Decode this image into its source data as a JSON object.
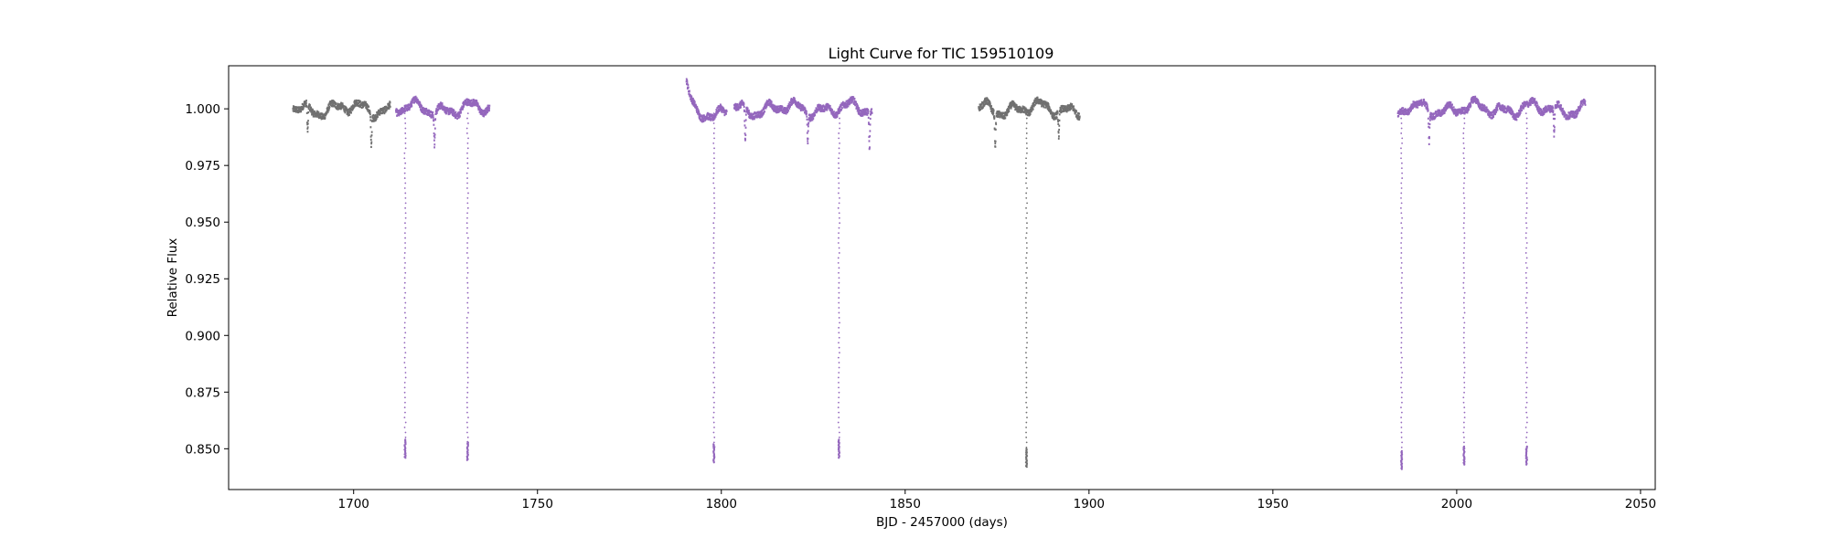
{
  "chart_data": {
    "type": "scatter",
    "title": "Light Curve for TIC 159510109",
    "xlabel": "BJD - 2457000 (days)",
    "ylabel": "Relative Flux",
    "xlim": [
      1666,
      2054
    ],
    "ylim": [
      0.832,
      1.019
    ],
    "xticks": [
      1700,
      1750,
      1800,
      1850,
      1900,
      1950,
      2000,
      2050
    ],
    "xtick_labels": [
      "1700",
      "1750",
      "1800",
      "1850",
      "1900",
      "1950",
      "2000",
      "2050"
    ],
    "yticks": [
      0.85,
      0.875,
      0.9,
      0.925,
      0.95,
      0.975,
      1.0
    ],
    "ytick_labels": [
      "0.850",
      "0.875",
      "0.900",
      "0.925",
      "0.950",
      "0.975",
      "1.000"
    ],
    "grid": false,
    "legend": "none",
    "colors": {
      "gray": "#707070",
      "purple": "#9467bd"
    },
    "segments": [
      {
        "color": "gray",
        "x_start": 1683.5,
        "x_end": 1710.0,
        "dips": [
          {
            "x": 1687.5,
            "depth": 0.012
          },
          {
            "x": 1704.8,
            "depth": 0.013
          }
        ]
      },
      {
        "color": "purple",
        "x_start": 1711.5,
        "x_end": 1737.0,
        "dips": [
          {
            "x": 1722.0,
            "depth": 0.014
          }
        ]
      },
      {
        "color": "purple",
        "x_start": 1790.5,
        "x_end": 1801.5,
        "dips": []
      },
      {
        "color": "purple",
        "x_start": 1803.5,
        "x_end": 1841.0,
        "dips": [
          {
            "x": 1806.5,
            "depth": 0.016
          },
          {
            "x": 1823.5,
            "depth": 0.012
          },
          {
            "x": 1840.3,
            "depth": 0.016
          }
        ]
      },
      {
        "color": "gray",
        "x_start": 1870.0,
        "x_end": 1897.5,
        "dips": [
          {
            "x": 1874.5,
            "depth": 0.014
          },
          {
            "x": 1891.8,
            "depth": 0.011
          }
        ]
      },
      {
        "color": "purple",
        "x_start": 1984.0,
        "x_end": 2035.0,
        "dips": [
          {
            "x": 1992.5,
            "depth": 0.013
          },
          {
            "x": 2026.5,
            "depth": 0.012
          }
        ]
      }
    ],
    "eclipses": [
      {
        "x": 1714.0,
        "min_flux": 0.846,
        "color": "purple"
      },
      {
        "x": 1731.0,
        "min_flux": 0.845,
        "color": "purple"
      },
      {
        "x": 1798.0,
        "min_flux": 0.844,
        "color": "purple"
      },
      {
        "x": 1832.0,
        "min_flux": 0.846,
        "color": "purple"
      },
      {
        "x": 1883.0,
        "min_flux": 0.842,
        "color": "gray"
      },
      {
        "x": 1985.0,
        "min_flux": 0.841,
        "color": "purple"
      },
      {
        "x": 2002.0,
        "min_flux": 0.843,
        "color": "purple"
      },
      {
        "x": 2019.0,
        "min_flux": 0.843,
        "color": "purple"
      }
    ]
  }
}
